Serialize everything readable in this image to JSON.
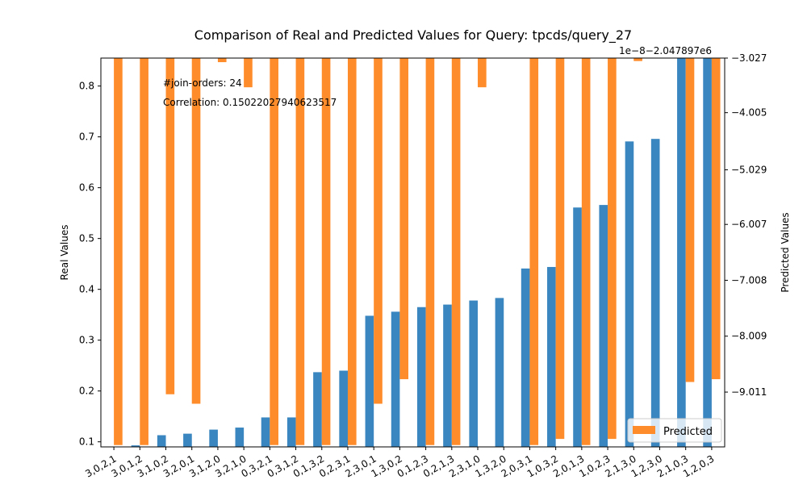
{
  "chart_data": {
    "type": "bar",
    "title": "Comparison of Real and Predicted Values for Query: tpcds/query_27",
    "ylabel": "Real Values",
    "y2label": "Predicted Values",
    "offset_text": "1e−8−2.047897e6",
    "ylim": [
      0.09,
      0.855
    ],
    "y2lim": [
      -9.993,
      -3.027
    ],
    "yticks": [
      "0.1",
      "0.2",
      "0.3",
      "0.4",
      "0.5",
      "0.6",
      "0.7",
      "0.8"
    ],
    "y2ticks": [
      "−3.027",
      "−4.005",
      "−5.029",
      "−6.007",
      "−7.008",
      "−8.009",
      "−9.011"
    ],
    "y2tick_values": [
      -3.027,
      -4.005,
      -5.029,
      -6.007,
      -7.008,
      -8.009,
      -9.011
    ],
    "annotations": [
      "#join-orders: 24",
      "Correlation: 0.15022027940623517"
    ],
    "legend": {
      "label": "Predicted",
      "placement": "lower-right"
    },
    "colors": {
      "real": "#3a86c0",
      "predicted": "#ff8c2a"
    },
    "categories": [
      "3,0,2,1",
      "3,0,1,2",
      "3,1,0,2",
      "3,2,0,1",
      "3,1,2,0",
      "3,2,1,0",
      "0,3,2,1",
      "0,3,1,2",
      "0,1,3,2",
      "0,2,3,1",
      "2,3,0,1",
      "1,3,0,2",
      "0,1,2,3",
      "0,2,1,3",
      "2,3,1,0",
      "1,3,2,0",
      "2,0,3,1",
      "1,0,3,2",
      "2,0,1,3",
      "1,0,2,3",
      "2,1,3,0",
      "1,2,3,0",
      "2,1,0,3",
      "1,2,0,3"
    ],
    "series": [
      {
        "values": [
          0.078,
          0.093,
          0.113,
          0.116,
          0.124,
          0.128,
          0.148,
          0.148,
          0.237,
          0.24,
          0.348,
          0.356,
          0.365,
          0.37,
          0.378,
          0.383,
          0.441,
          0.444,
          0.561,
          0.566,
          0.691,
          0.696,
          0.86,
          0.86
        ]
      },
      {
        "name": "Predicted",
        "values": [
          -9.96,
          -9.96,
          -9.05,
          -9.22,
          -3.1,
          -3.55,
          -9.96,
          -9.96,
          -9.96,
          -9.96,
          -9.22,
          -8.78,
          -9.96,
          -9.96,
          -3.55,
          -3.03,
          -9.96,
          -9.85,
          -9.96,
          -9.85,
          -3.08,
          -3.027,
          -8.83,
          -8.78
        ]
      }
    ]
  }
}
